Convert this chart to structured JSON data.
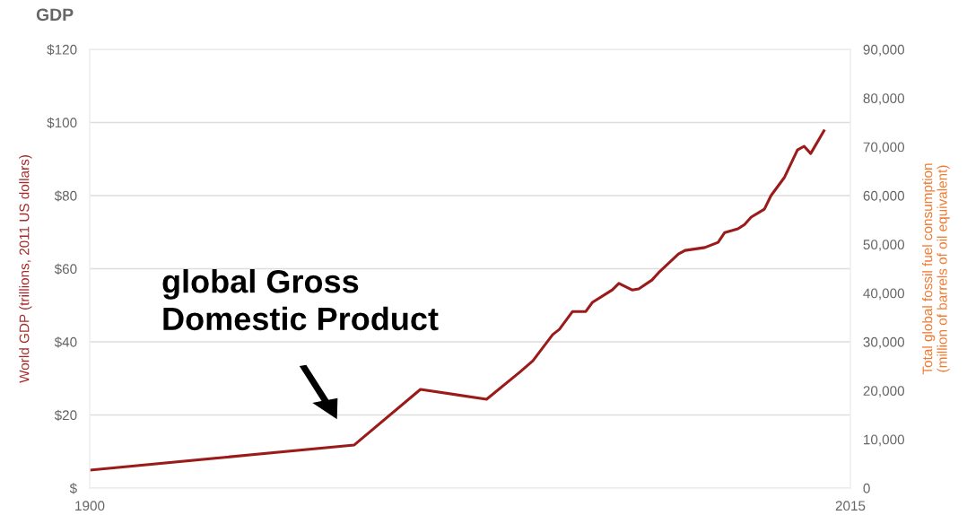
{
  "chart_data": {
    "type": "line",
    "title": "GDP",
    "ylabel": "World GDP (trillions, 2011 US dollars)",
    "y2label": "Total global fossil fuel consumption\n(million of barrels of oil equivalent)",
    "x": [
      1900,
      1940,
      1950,
      1960,
      1965,
      1967,
      1970,
      1971,
      1973,
      1975,
      1976,
      1979,
      1980,
      1982,
      1983,
      1985,
      1986,
      1989,
      1990,
      1993,
      1995,
      1996,
      1998,
      1999,
      2000,
      2002,
      2003,
      2005,
      2007,
      2008,
      2009,
      2011
    ],
    "series": [
      {
        "color": "#9b1b1b",
        "values": [
          4.9,
          11.8,
          27.0,
          24.3,
          31.7,
          34.8,
          42.0,
          43.4,
          48.3,
          48.3,
          50.8,
          54.2,
          56.0,
          54.2,
          54.5,
          56.9,
          58.9,
          64.0,
          65.0,
          65.8,
          67.2,
          69.9,
          70.9,
          72.1,
          74.1,
          76.3,
          80.0,
          84.9,
          92.5,
          93.5,
          91.5,
          97.7
        ]
      }
    ],
    "xlim": [
      1900,
      2015
    ],
    "xticks": [
      1900,
      2015
    ],
    "ylim": [
      0,
      120
    ],
    "yticks": [
      {
        "value": 0,
        "label": "$"
      },
      {
        "value": 20,
        "label": "$20"
      },
      {
        "value": 40,
        "label": "$40"
      },
      {
        "value": 60,
        "label": "$60"
      },
      {
        "value": 80,
        "label": "$80"
      },
      {
        "value": 100,
        "label": "$100"
      },
      {
        "value": 120,
        "label": "$120"
      }
    ],
    "y2lim": [
      0,
      90000
    ],
    "y2ticks": [
      {
        "value": 0,
        "label": "0"
      },
      {
        "value": 10000,
        "label": "10,000"
      },
      {
        "value": 20000,
        "label": "20,000"
      },
      {
        "value": 30000,
        "label": "30,000"
      },
      {
        "value": 40000,
        "label": "40,000"
      },
      {
        "value": 50000,
        "label": "50,000"
      },
      {
        "value": 60000,
        "label": "60,000"
      },
      {
        "value": 70000,
        "label": "70,000"
      },
      {
        "value": 80000,
        "label": "80,000"
      },
      {
        "value": 90000,
        "label": "90,000"
      }
    ],
    "grid": "y",
    "marker": "none",
    "line_style": "solid",
    "annotations": [
      "global Gross\nDomestic Product"
    ]
  }
}
